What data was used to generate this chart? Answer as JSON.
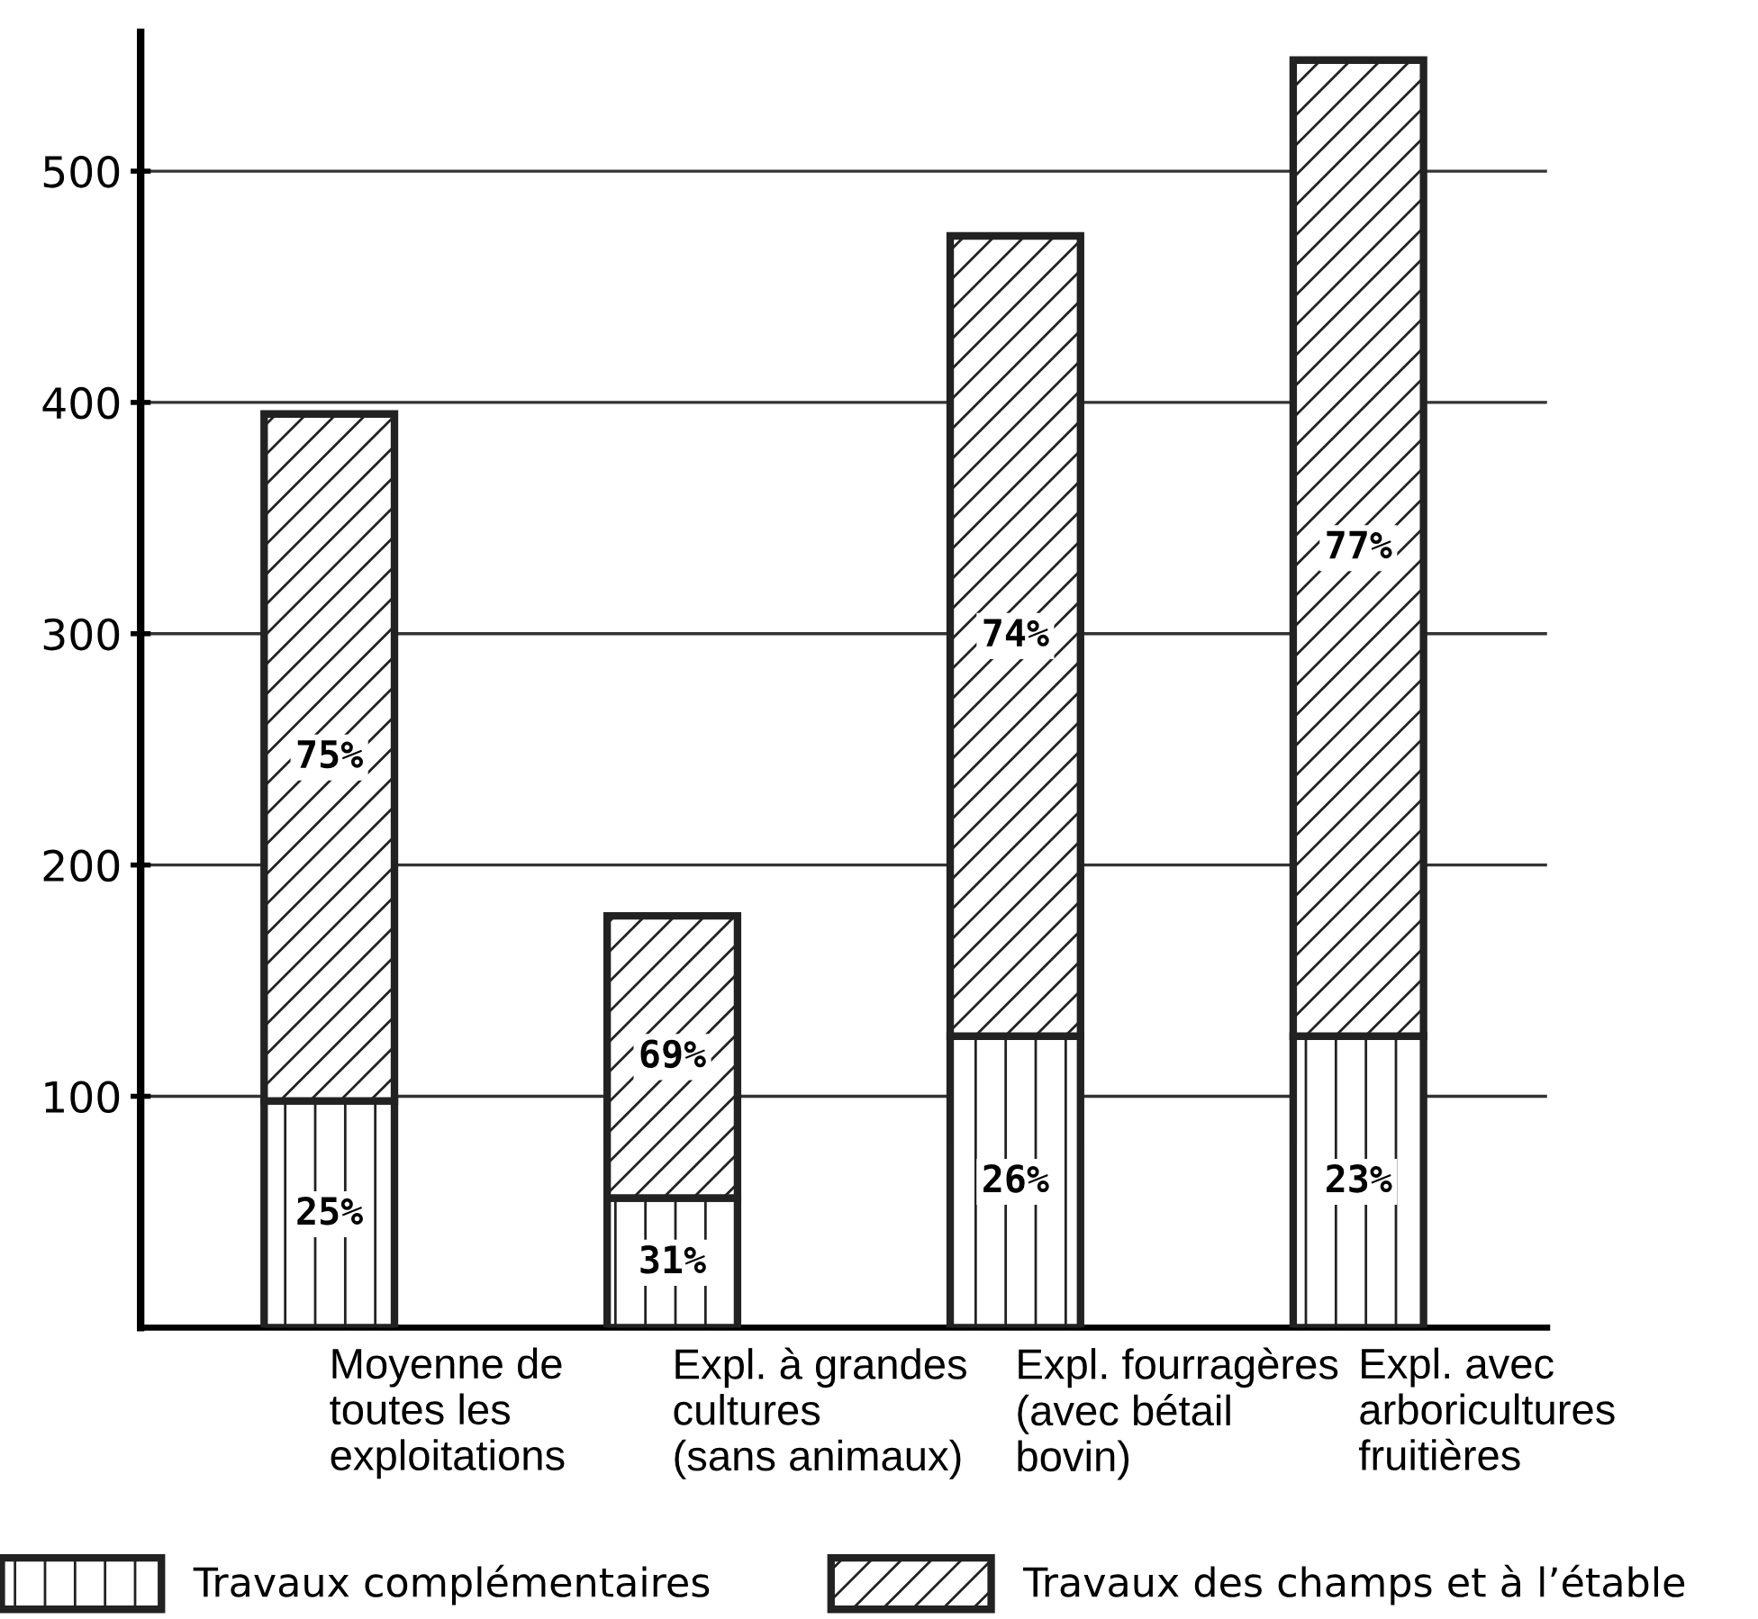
{
  "chart_data": {
    "type": "bar",
    "stacked": true,
    "categories": [
      "Moyenne de\ntoutes les\nexploitations",
      "Expl. à grandes\ncultures\n(sans animaux)",
      "Expl. fourragères\n(avec bétail\nbovin)",
      "Expl. avec\narboricultures\nfruitières"
    ],
    "series": [
      {
        "name": "Travaux complémentaires",
        "color": "#222222",
        "values": [
          98,
          56,
          126,
          126
        ]
      },
      {
        "name": "Travaux des champs et à l’étable",
        "color": "#222222",
        "values": [
          297,
          122,
          346,
          422
        ]
      }
    ],
    "annotations": [
      "25%",
      "31%",
      "26%",
      "23%",
      "75%",
      "69%",
      "74%",
      "77%"
    ],
    "ylim": [
      0,
      560
    ],
    "yticks": [
      100,
      200,
      300,
      400,
      500
    ],
    "grid": "y",
    "legend": "bottom"
  }
}
